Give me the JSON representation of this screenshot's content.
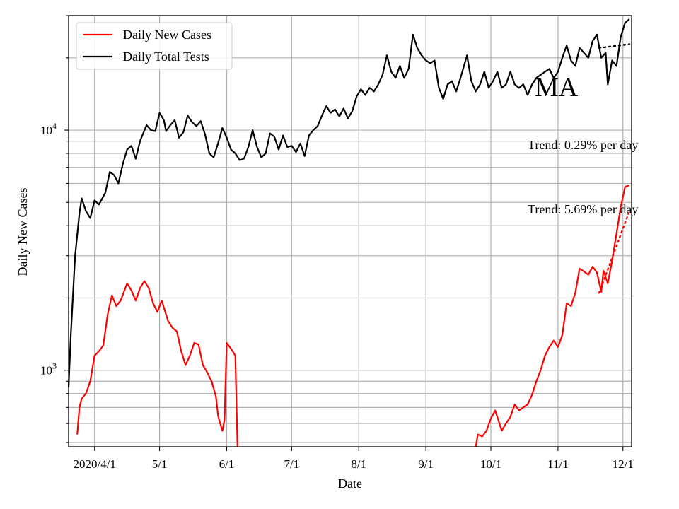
{
  "chart_data": {
    "type": "line",
    "title": "MA",
    "xlabel": "Date",
    "ylabel": "Daily New Cases",
    "y_scale": "log",
    "ylim": [
      480,
      30000
    ],
    "xlim": [
      "2020-03-20",
      "2020-12-05"
    ],
    "grid": true,
    "legend_position": "top-left",
    "x_ticks": [
      {
        "date": "2020-04-01",
        "label": "2020/4/1"
      },
      {
        "date": "2020-05-01",
        "label": "5/1"
      },
      {
        "date": "2020-06-01",
        "label": "6/1"
      },
      {
        "date": "2020-07-01",
        "label": "7/1"
      },
      {
        "date": "2020-08-01",
        "label": "8/1"
      },
      {
        "date": "2020-09-01",
        "label": "9/1"
      },
      {
        "date": "2020-10-01",
        "label": "10/1"
      },
      {
        "date": "2020-11-01",
        "label": "11/1"
      },
      {
        "date": "2020-12-01",
        "label": "12/1"
      }
    ],
    "y_major_ticks": [
      {
        "value": 1000,
        "base": "10",
        "exp": "3"
      },
      {
        "value": 10000,
        "base": "10",
        "exp": "4"
      }
    ],
    "series": [
      {
        "name": "Daily New Cases",
        "color": "#ff0000",
        "segments": [
          [
            [
              "2020-03-24",
              540
            ],
            [
              "2020-03-25",
              700
            ],
            [
              "2020-03-26",
              760
            ],
            [
              "2020-03-28",
              800
            ],
            [
              "2020-03-30",
              900
            ],
            [
              "2020-04-01",
              1150
            ],
            [
              "2020-04-03",
              1200
            ],
            [
              "2020-04-05",
              1270
            ],
            [
              "2020-04-07",
              1700
            ],
            [
              "2020-04-09",
              2050
            ],
            [
              "2020-04-11",
              1850
            ],
            [
              "2020-04-13",
              1950
            ],
            [
              "2020-04-16",
              2300
            ],
            [
              "2020-04-18",
              2150
            ],
            [
              "2020-04-20",
              1950
            ],
            [
              "2020-04-22",
              2200
            ],
            [
              "2020-04-24",
              2350
            ],
            [
              "2020-04-26",
              2200
            ],
            [
              "2020-04-28",
              1900
            ],
            [
              "2020-04-30",
              1750
            ],
            [
              "2020-05-02",
              1950
            ],
            [
              "2020-05-05",
              1600
            ],
            [
              "2020-05-07",
              1500
            ],
            [
              "2020-05-09",
              1450
            ],
            [
              "2020-05-11",
              1200
            ],
            [
              "2020-05-13",
              1050
            ],
            [
              "2020-05-15",
              1150
            ],
            [
              "2020-05-17",
              1300
            ],
            [
              "2020-05-19",
              1280
            ],
            [
              "2020-05-21",
              1050
            ],
            [
              "2020-05-23",
              980
            ],
            [
              "2020-05-25",
              900
            ],
            [
              "2020-05-27",
              780
            ],
            [
              "2020-05-28",
              650
            ],
            [
              "2020-05-29",
              600
            ],
            [
              "2020-05-30",
              560
            ],
            [
              "2020-05-31",
              620
            ],
            [
              "2020-06-01",
              1300
            ],
            [
              "2020-06-03",
              1230
            ],
            [
              "2020-06-05",
              1150
            ],
            [
              "2020-06-06",
              480
            ]
          ],
          [
            [
              "2020-09-24",
              480
            ],
            [
              "2020-09-25",
              540
            ],
            [
              "2020-09-27",
              530
            ],
            [
              "2020-09-29",
              560
            ],
            [
              "2020-10-01",
              630
            ],
            [
              "2020-10-03",
              680
            ],
            [
              "2020-10-05",
              600
            ],
            [
              "2020-10-06",
              560
            ],
            [
              "2020-10-08",
              600
            ],
            [
              "2020-10-10",
              640
            ],
            [
              "2020-10-12",
              720
            ],
            [
              "2020-10-14",
              680
            ],
            [
              "2020-10-16",
              700
            ],
            [
              "2020-10-18",
              720
            ],
            [
              "2020-10-20",
              790
            ],
            [
              "2020-10-22",
              900
            ],
            [
              "2020-10-24",
              1000
            ],
            [
              "2020-10-26",
              1150
            ],
            [
              "2020-10-28",
              1250
            ],
            [
              "2020-10-30",
              1330
            ],
            [
              "2020-11-01",
              1250
            ],
            [
              "2020-11-03",
              1400
            ],
            [
              "2020-11-05",
              1900
            ],
            [
              "2020-11-07",
              1850
            ],
            [
              "2020-11-09",
              2100
            ],
            [
              "2020-11-11",
              2650
            ],
            [
              "2020-11-13",
              2580
            ],
            [
              "2020-11-15",
              2500
            ],
            [
              "2020-11-17",
              2700
            ],
            [
              "2020-11-19",
              2550
            ],
            [
              "2020-11-21",
              2120
            ],
            [
              "2020-11-22",
              2600
            ],
            [
              "2020-11-24",
              2300
            ],
            [
              "2020-11-26",
              2850
            ],
            [
              "2020-11-28",
              3700
            ],
            [
              "2020-11-30",
              4800
            ],
            [
              "2020-12-02",
              5800
            ],
            [
              "2020-12-04",
              5900
            ]
          ]
        ]
      },
      {
        "name": "Daily Total Tests",
        "color": "#000000",
        "segments": [
          [
            [
              "2020-03-20",
              850
            ],
            [
              "2020-03-21",
              1400
            ],
            [
              "2020-03-23",
              3000
            ],
            [
              "2020-03-25",
              4500
            ],
            [
              "2020-03-26",
              5200
            ],
            [
              "2020-03-28",
              4600
            ],
            [
              "2020-03-30",
              4300
            ],
            [
              "2020-04-01",
              5100
            ],
            [
              "2020-04-03",
              4900
            ],
            [
              "2020-04-06",
              5500
            ],
            [
              "2020-04-08",
              6700
            ],
            [
              "2020-04-10",
              6500
            ],
            [
              "2020-04-12",
              6000
            ],
            [
              "2020-04-14",
              7200
            ],
            [
              "2020-04-16",
              8300
            ],
            [
              "2020-04-18",
              8600
            ],
            [
              "2020-04-20",
              7600
            ],
            [
              "2020-04-22",
              9000
            ],
            [
              "2020-04-25",
              10500
            ],
            [
              "2020-04-27",
              10000
            ],
            [
              "2020-04-29",
              9900
            ],
            [
              "2020-05-01",
              11800
            ],
            [
              "2020-05-03",
              11000
            ],
            [
              "2020-05-04",
              9900
            ],
            [
              "2020-05-06",
              10500
            ],
            [
              "2020-05-08",
              11000
            ],
            [
              "2020-05-10",
              9300
            ],
            [
              "2020-05-12",
              9800
            ],
            [
              "2020-05-14",
              11500
            ],
            [
              "2020-05-16",
              10800
            ],
            [
              "2020-05-18",
              10400
            ],
            [
              "2020-05-20",
              10900
            ],
            [
              "2020-05-22",
              9600
            ],
            [
              "2020-05-24",
              8000
            ],
            [
              "2020-05-26",
              7700
            ],
            [
              "2020-05-28",
              8800
            ],
            [
              "2020-05-30",
              10200
            ],
            [
              "2020-06-01",
              9300
            ],
            [
              "2020-06-03",
              8300
            ],
            [
              "2020-06-05",
              8000
            ],
            [
              "2020-06-07",
              7500
            ],
            [
              "2020-06-09",
              7600
            ],
            [
              "2020-06-11",
              8500
            ],
            [
              "2020-06-13",
              10000
            ],
            [
              "2020-06-15",
              8500
            ],
            [
              "2020-06-17",
              7700
            ],
            [
              "2020-06-19",
              8000
            ],
            [
              "2020-06-21",
              9700
            ],
            [
              "2020-06-23",
              9400
            ],
            [
              "2020-06-25",
              8300
            ],
            [
              "2020-06-27",
              9500
            ],
            [
              "2020-06-29",
              8500
            ],
            [
              "2020-07-01",
              8600
            ],
            [
              "2020-07-03",
              8100
            ],
            [
              "2020-07-05",
              8800
            ],
            [
              "2020-07-07",
              7800
            ],
            [
              "2020-07-09",
              9500
            ],
            [
              "2020-07-11",
              10000
            ],
            [
              "2020-07-13",
              10400
            ],
            [
              "2020-07-15",
              11500
            ],
            [
              "2020-07-17",
              12600
            ],
            [
              "2020-07-19",
              11800
            ],
            [
              "2020-07-21",
              12200
            ],
            [
              "2020-07-23",
              11400
            ],
            [
              "2020-07-25",
              12300
            ],
            [
              "2020-07-27",
              11200
            ],
            [
              "2020-07-29",
              12000
            ],
            [
              "2020-07-31",
              13800
            ],
            [
              "2020-08-02",
              14800
            ],
            [
              "2020-08-04",
              14000
            ],
            [
              "2020-08-06",
              15000
            ],
            [
              "2020-08-08",
              14500
            ],
            [
              "2020-08-10",
              15500
            ],
            [
              "2020-08-12",
              17000
            ],
            [
              "2020-08-14",
              20500
            ],
            [
              "2020-08-16",
              17500
            ],
            [
              "2020-08-18",
              16500
            ],
            [
              "2020-08-20",
              18500
            ],
            [
              "2020-08-22",
              16500
            ],
            [
              "2020-08-24",
              18000
            ],
            [
              "2020-08-26",
              25000
            ],
            [
              "2020-08-28",
              22000
            ],
            [
              "2020-08-30",
              20500
            ],
            [
              "2020-09-01",
              19500
            ],
            [
              "2020-09-03",
              19000
            ],
            [
              "2020-09-05",
              19500
            ],
            [
              "2020-09-07",
              15000
            ],
            [
              "2020-09-09",
              13500
            ],
            [
              "2020-09-11",
              15500
            ],
            [
              "2020-09-13",
              16000
            ],
            [
              "2020-09-15",
              14500
            ],
            [
              "2020-09-17",
              16500
            ],
            [
              "2020-09-20",
              20500
            ],
            [
              "2020-09-22",
              16000
            ],
            [
              "2020-09-24",
              14500
            ],
            [
              "2020-09-26",
              15500
            ],
            [
              "2020-09-28",
              17500
            ],
            [
              "2020-09-30",
              15000
            ],
            [
              "2020-10-02",
              16000
            ],
            [
              "2020-10-04",
              17500
            ],
            [
              "2020-10-06",
              15000
            ],
            [
              "2020-10-08",
              15500
            ],
            [
              "2020-10-10",
              17500
            ],
            [
              "2020-10-12",
              15500
            ],
            [
              "2020-10-14",
              15000
            ],
            [
              "2020-10-16",
              15500
            ],
            [
              "2020-10-18",
              14000
            ],
            [
              "2020-10-20",
              15500
            ],
            [
              "2020-10-22",
              16500
            ],
            [
              "2020-10-24",
              17000
            ],
            [
              "2020-10-26",
              17500
            ],
            [
              "2020-10-28",
              18000
            ],
            [
              "2020-10-30",
              16500
            ],
            [
              "2020-11-01",
              17500
            ],
            [
              "2020-11-03",
              20000
            ],
            [
              "2020-11-05",
              22500
            ],
            [
              "2020-11-07",
              19500
            ],
            [
              "2020-11-09",
              18500
            ],
            [
              "2020-11-11",
              22000
            ],
            [
              "2020-11-13",
              21000
            ],
            [
              "2020-11-15",
              20000
            ],
            [
              "2020-11-17",
              23500
            ],
            [
              "2020-11-19",
              25000
            ],
            [
              "2020-11-21",
              20000
            ],
            [
              "2020-11-23",
              21000
            ],
            [
              "2020-11-24",
              15500
            ],
            [
              "2020-11-26",
              19500
            ],
            [
              "2020-11-28",
              18500
            ],
            [
              "2020-11-30",
              24500
            ],
            [
              "2020-12-02",
              28000
            ],
            [
              "2020-12-04",
              29000
            ]
          ]
        ]
      }
    ],
    "trend_lines": [
      {
        "series": "Daily Total Tests",
        "color": "#000000",
        "style": "dotted",
        "points": [
          [
            "2020-11-20",
            22000
          ],
          [
            "2020-12-04",
            22800
          ]
        ]
      },
      {
        "series": "Daily New Cases",
        "color": "#ff0000",
        "style": "dotted",
        "points": [
          [
            "2020-11-20",
            2100
          ],
          [
            "2020-12-04",
            4600
          ]
        ]
      }
    ],
    "annotations": {
      "state": "MA",
      "trend_tests": "Trend: 0.29% per day",
      "trend_cases": "Trend: 5.69% per day"
    }
  }
}
